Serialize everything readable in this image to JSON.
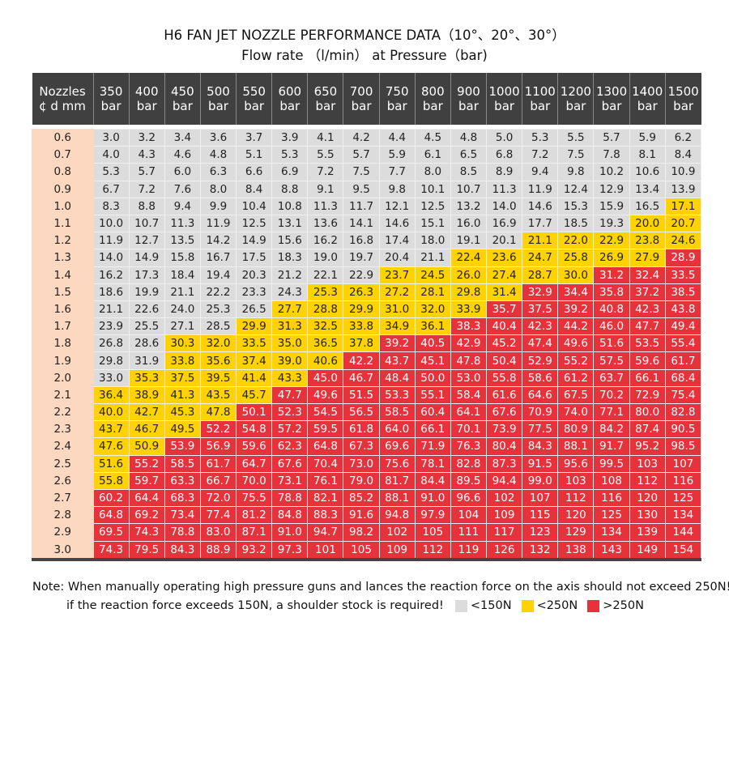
{
  "title": "H6 FAN JET NOZZLE PERFORMANCE DATA（10°、20°、30°）",
  "subtitle": "Flow rate （l/min） at Pressure（bar)",
  "colors": {
    "header": "#404040",
    "nozzle_col": "#fbd8bf",
    "low": "#dcdcdc",
    "mid": "#ffd200",
    "high": "#e5323b"
  },
  "chart_data": {
    "type": "table",
    "header_first": [
      "Nozzles",
      "¢ d mm"
    ],
    "pressure_unit": "bar",
    "pressures": [
      "350",
      "400",
      "450",
      "500",
      "550",
      "600",
      "650",
      "700",
      "750",
      "800",
      "900",
      "1000",
      "1100",
      "1200",
      "1300",
      "1400",
      "1500"
    ],
    "force_category_legend": {
      "g": "<150N",
      "y": "<250N",
      "r": ">250N"
    },
    "rows": [
      {
        "nozzle": "0.6",
        "values": [
          "3.0",
          "3.2",
          "3.4",
          "3.6",
          "3.7",
          "3.9",
          "4.1",
          "4.2",
          "4.4",
          "4.5",
          "4.8",
          "5.0",
          "5.3",
          "5.5",
          "5.7",
          "5.9",
          "6.2"
        ],
        "force": "ggggggggggggggggg"
      },
      {
        "nozzle": "0.7",
        "values": [
          "4.0",
          "4.3",
          "4.6",
          "4.8",
          "5.1",
          "5.3",
          "5.5",
          "5.7",
          "5.9",
          "6.1",
          "6.5",
          "6.8",
          "7.2",
          "7.5",
          "7.8",
          "8.1",
          "8.4"
        ],
        "force": "ggggggggggggggggg"
      },
      {
        "nozzle": "0.8",
        "values": [
          "5.3",
          "5.7",
          "6.0",
          "6.3",
          "6.6",
          "6.9",
          "7.2",
          "7.5",
          "7.7",
          "8.0",
          "8.5",
          "8.9",
          "9.4",
          "9.8",
          "10.2",
          "10.6",
          "10.9"
        ],
        "force": "ggggggggggggggggg"
      },
      {
        "nozzle": "0.9",
        "values": [
          "6.7",
          "7.2",
          "7.6",
          "8.0",
          "8.4",
          "8.8",
          "9.1",
          "9.5",
          "9.8",
          "10.1",
          "10.7",
          "11.3",
          "11.9",
          "12.4",
          "12.9",
          "13.4",
          "13.9"
        ],
        "force": "ggggggggggggggggg"
      },
      {
        "nozzle": "1.0",
        "values": [
          "8.3",
          "8.8",
          "9.4",
          "9.9",
          "10.4",
          "10.8",
          "11.3",
          "11.7",
          "12.1",
          "12.5",
          "13.2",
          "14.0",
          "14.6",
          "15.3",
          "15.9",
          "16.5",
          "17.1"
        ],
        "force": "ggggggggggggggggy"
      },
      {
        "nozzle": "1.1",
        "values": [
          "10.0",
          "10.7",
          "11.3",
          "11.9",
          "12.5",
          "13.1",
          "13.6",
          "14.1",
          "14.6",
          "15.1",
          "16.0",
          "16.9",
          "17.7",
          "18.5",
          "19.3",
          "20.0",
          "20.7"
        ],
        "force": "gggggggggggggggyy"
      },
      {
        "nozzle": "1.2",
        "values": [
          "11.9",
          "12.7",
          "13.5",
          "14.2",
          "14.9",
          "15.6",
          "16.2",
          "16.8",
          "17.4",
          "18.0",
          "19.1",
          "20.1",
          "21.1",
          "22.0",
          "22.9",
          "23.8",
          "24.6"
        ],
        "force": "ggggggggggggyyyyy"
      },
      {
        "nozzle": "1.3",
        "values": [
          "14.0",
          "14.9",
          "15.8",
          "16.7",
          "17.5",
          "18.3",
          "19.0",
          "19.7",
          "20.4",
          "21.1",
          "22.4",
          "23.6",
          "24.7",
          "25.8",
          "26.9",
          "27.9",
          "28.9"
        ],
        "force": "ggggggggggyyyyyyr"
      },
      {
        "nozzle": "1.4",
        "values": [
          "16.2",
          "17.3",
          "18.4",
          "19.4",
          "20.3",
          "21.2",
          "22.1",
          "22.9",
          "23.7",
          "24.5",
          "26.0",
          "27.4",
          "28.7",
          "30.0",
          "31.2",
          "32.4",
          "33.5"
        ],
        "force": "ggggggggyyyyyyrrr"
      },
      {
        "nozzle": "1.5",
        "values": [
          "18.6",
          "19.9",
          "21.1",
          "22.2",
          "23.3",
          "24.3",
          "25.3",
          "26.3",
          "27.2",
          "28.1",
          "29.8",
          "31.4",
          "32.9",
          "34.4",
          "35.8",
          "37.2",
          "38.5"
        ],
        "force": "ggggggyyyyyyrrrrr"
      },
      {
        "nozzle": "1.6",
        "values": [
          "21.1",
          "22.6",
          "24.0",
          "25.3",
          "26.5",
          "27.7",
          "28.8",
          "29.9",
          "31.0",
          "32.0",
          "33.9",
          "35.7",
          "37.5",
          "39.2",
          "40.8",
          "42.3",
          "43.8"
        ],
        "force": "gggggyyyyyyrrrrrr"
      },
      {
        "nozzle": "1.7",
        "values": [
          "23.9",
          "25.5",
          "27.1",
          "28.5",
          "29.9",
          "31.3",
          "32.5",
          "33.8",
          "34.9",
          "36.1",
          "38.3",
          "40.4",
          "42.3",
          "44.2",
          "46.0",
          "47.7",
          "49.4"
        ],
        "force": "ggggyyyyyyrrrrrrr"
      },
      {
        "nozzle": "1.8",
        "values": [
          "26.8",
          "28.6",
          "30.3",
          "32.0",
          "33.5",
          "35.0",
          "36.5",
          "37.8",
          "39.2",
          "40.5",
          "42.9",
          "45.2",
          "47.4",
          "49.6",
          "51.6",
          "53.5",
          "55.4"
        ],
        "force": "ggyyyyyyrrrrrrrrr"
      },
      {
        "nozzle": "1.9",
        "values": [
          "29.8",
          "31.9",
          "33.8",
          "35.6",
          "37.4",
          "39.0",
          "40.6",
          "42.2",
          "43.7",
          "45.1",
          "47.8",
          "50.4",
          "52.9",
          "55.2",
          "57.5",
          "59.6",
          "61.7"
        ],
        "force": "ggyyyyyrrrrrrrrrr"
      },
      {
        "nozzle": "2.0",
        "values": [
          "33.0",
          "35.3",
          "37.5",
          "39.5",
          "41.4",
          "43.3",
          "45.0",
          "46.7",
          "48.4",
          "50.0",
          "53.0",
          "55.8",
          "58.6",
          "61.2",
          "63.7",
          "66.1",
          "68.4"
        ],
        "force": "gyyyyyrrrrrrrrrrr"
      },
      {
        "nozzle": "2.1",
        "values": [
          "36.4",
          "38.9",
          "41.3",
          "43.5",
          "45.7",
          "47.7",
          "49.6",
          "51.5",
          "53.3",
          "55.1",
          "58.4",
          "61.6",
          "64.6",
          "67.5",
          "70.2",
          "72.9",
          "75.4"
        ],
        "force": "yyyyyrrrrrrrrrrrr"
      },
      {
        "nozzle": "2.2",
        "values": [
          "40.0",
          "42.7",
          "45.3",
          "47.8",
          "50.1",
          "52.3",
          "54.5",
          "56.5",
          "58.5",
          "60.4",
          "64.1",
          "67.6",
          "70.9",
          "74.0",
          "77.1",
          "80.0",
          "82.8"
        ],
        "force": "yyyyrrrrrrrrrrrrr"
      },
      {
        "nozzle": "2.3",
        "values": [
          "43.7",
          "46.7",
          "49.5",
          "52.2",
          "54.8",
          "57.2",
          "59.5",
          "61.8",
          "64.0",
          "66.1",
          "70.1",
          "73.9",
          "77.5",
          "80.9",
          "84.2",
          "87.4",
          "90.5"
        ],
        "force": "yyyrrrrrrrrrrrrrr"
      },
      {
        "nozzle": "2.4",
        "values": [
          "47.6",
          "50.9",
          "53.9",
          "56.9",
          "59.6",
          "62.3",
          "64.8",
          "67.3",
          "69.6",
          "71.9",
          "76.3",
          "80.4",
          "84.3",
          "88.1",
          "91.7",
          "95.2",
          "98.5"
        ],
        "force": "yyrrrrrrrrrrrrrrr"
      },
      {
        "nozzle": "2.5",
        "values": [
          "51.6",
          "55.2",
          "58.5",
          "61.7",
          "64.7",
          "67.6",
          "70.4",
          "73.0",
          "75.6",
          "78.1",
          "82.8",
          "87.3",
          "91.5",
          "95.6",
          "99.5",
          "103",
          "107"
        ],
        "force": "yrrrrrrrrrrrrrrrr"
      },
      {
        "nozzle": "2.6",
        "values": [
          "55.8",
          "59.7",
          "63.3",
          "66.7",
          "70.0",
          "73.1",
          "76.1",
          "79.0",
          "81.7",
          "84.4",
          "89.5",
          "94.4",
          "99.0",
          "103",
          "108",
          "112",
          "116"
        ],
        "force": "yrrrrrrrrrrrrrrrr"
      },
      {
        "nozzle": "2.7",
        "values": [
          "60.2",
          "64.4",
          "68.3",
          "72.0",
          "75.5",
          "78.8",
          "82.1",
          "85.2",
          "88.1",
          "91.0",
          "96.6",
          "102",
          "107",
          "112",
          "116",
          "120",
          "125"
        ],
        "force": "rrrrrrrrrrrrrrrrr"
      },
      {
        "nozzle": "2.8",
        "values": [
          "64.8",
          "69.2",
          "73.4",
          "77.4",
          "81.2",
          "84.8",
          "88.3",
          "91.6",
          "94.8",
          "97.9",
          "104",
          "109",
          "115",
          "120",
          "125",
          "130",
          "134"
        ],
        "force": "rrrrrrrrrrrrrrrrr"
      },
      {
        "nozzle": "2.9",
        "values": [
          "69.5",
          "74.3",
          "78.8",
          "83.0",
          "87.1",
          "91.0",
          "94.7",
          "98.2",
          "102",
          "105",
          "111",
          "117",
          "123",
          "129",
          "134",
          "139",
          "144"
        ],
        "force": "rrrrrrrrrrrrrrrrr"
      },
      {
        "nozzle": "3.0",
        "values": [
          "74.3",
          "79.5",
          "84.3",
          "88.9",
          "93.2",
          "97.3",
          "101",
          "105",
          "109",
          "112",
          "119",
          "126",
          "132",
          "138",
          "143",
          "149",
          "154"
        ],
        "force": "rrrrrrrrrrrrrrrrr"
      }
    ]
  },
  "notes": {
    "line1": "Note: When manually operating high pressure guns and lances the reaction force on the axis should not exceed 250N!",
    "line2": "if the reaction force exceeds 150N, a shoulder stock is required!",
    "legend": [
      {
        "key": "g",
        "label": "<150N"
      },
      {
        "key": "y",
        "label": "<250N"
      },
      {
        "key": "r",
        "label": ">250N"
      }
    ]
  }
}
